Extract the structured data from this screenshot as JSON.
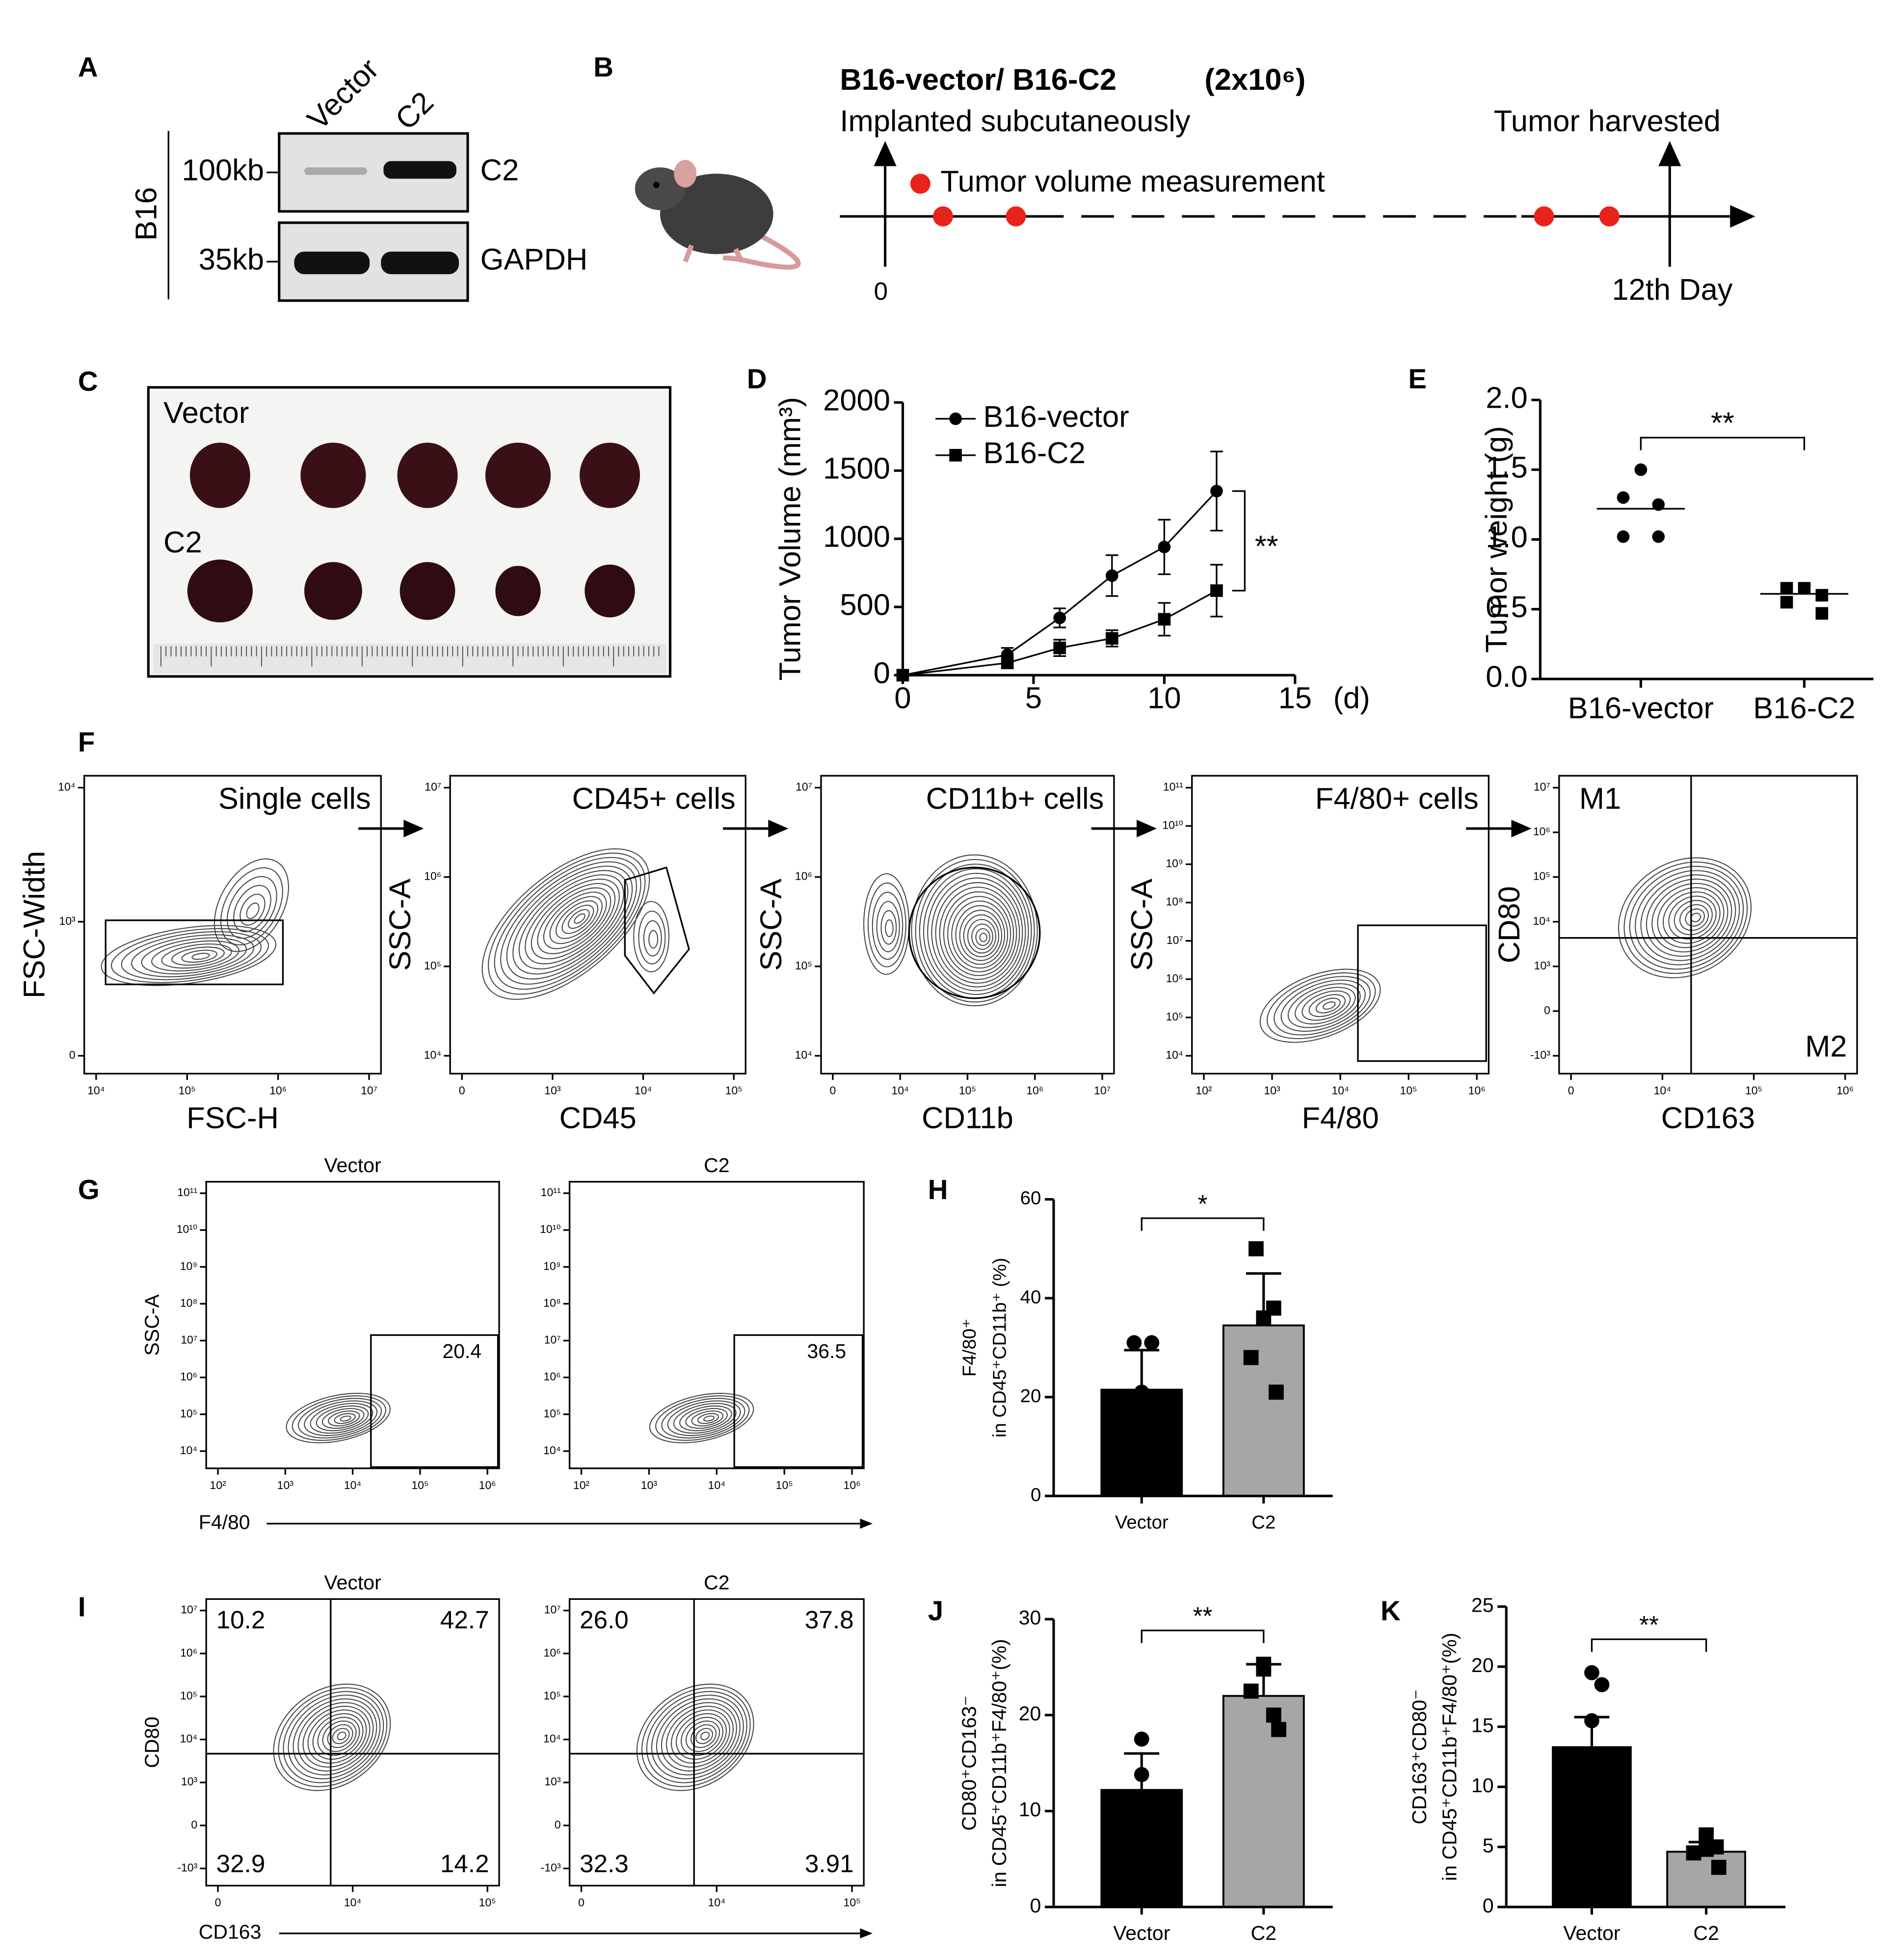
{
  "panel_A": {
    "label": "A",
    "cell_line": "B16",
    "lanes": [
      "Vector",
      "C2"
    ],
    "markers": [
      "100kb",
      "35kb"
    ],
    "proteins": [
      "C2",
      "GAPDH"
    ]
  },
  "panel_B": {
    "label": "B",
    "title": "B16-vector/ B16-C2",
    "dose": "(2x10⁶)",
    "start_text": "Implanted subcutaneously",
    "end_text": "Tumor harvested",
    "legend": "Tumor volume measurement",
    "start_day": "0",
    "end_day": "12th Day"
  },
  "panel_C": {
    "label": "C",
    "rows": [
      "Vector",
      "C2"
    ]
  },
  "chart_data": [
    {
      "type": "line",
      "panel": "D",
      "ylabel": "Tumor Volume (mm³)",
      "xunit": "(d)",
      "x": [
        0,
        4,
        6,
        8,
        10,
        12
      ],
      "xlim": [
        0,
        15
      ],
      "xticks": [
        0,
        5,
        10,
        15
      ],
      "ylim": [
        0,
        2000
      ],
      "yticks": [
        0,
        500,
        1000,
        1500,
        2000
      ],
      "series": [
        {
          "name": "B16-vector",
          "marker": "circle",
          "color": "#000000",
          "values": [
            0,
            150,
            420,
            730,
            940,
            1350
          ],
          "errors": [
            0,
            50,
            70,
            150,
            200,
            290
          ]
        },
        {
          "name": "B16-C2",
          "marker": "square",
          "color": "#000000",
          "values": [
            0,
            90,
            200,
            270,
            410,
            620
          ],
          "errors": [
            0,
            30,
            60,
            60,
            120,
            190
          ]
        }
      ],
      "annotation": "**"
    },
    {
      "type": "dot",
      "panel": "E",
      "ylabel": "Tumor weight (g)",
      "categories": [
        "B16-vector",
        "B16-C2"
      ],
      "ylim": [
        0,
        2
      ],
      "yticks": [
        {
          "value": 0,
          "label": "0.0"
        },
        {
          "value": 0.5,
          "label": "0.5"
        },
        {
          "value": 1,
          "label": "1.0"
        },
        {
          "value": 1.5,
          "label": "1.5"
        },
        {
          "value": 2,
          "label": "2.0"
        }
      ],
      "points": [
        [
          1.5,
          1.3,
          1.25,
          1.02,
          1.02
        ],
        [
          0.65,
          0.65,
          0.6,
          0.55,
          0.47
        ]
      ],
      "means": [
        1.22,
        0.61
      ],
      "markers": [
        "circle",
        "square"
      ],
      "color": "#000000",
      "annotation": "**"
    },
    {
      "type": "bar",
      "panel": "H",
      "ylabel": [
        "F4/80⁺",
        "in CD45⁺CD11b⁺ (%)"
      ],
      "categories": [
        "Vector",
        "C2"
      ],
      "values": [
        21.5,
        34.5
      ],
      "errors": [
        8,
        10.5
      ],
      "points": [
        [
          31,
          31,
          21,
          14,
          11
        ],
        [
          50,
          38,
          36,
          28,
          21
        ]
      ],
      "colors": [
        "#000000",
        "#a6a6a6"
      ],
      "markers": [
        "circle",
        "square"
      ],
      "ylim": [
        0,
        60
      ],
      "yticks": [
        0,
        20,
        40,
        60
      ],
      "annotation": "*"
    },
    {
      "type": "bar",
      "panel": "J",
      "ylabel": [
        "CD80⁺CD163⁻",
        "in CD45⁺CD11b⁺F4/80⁺(%)"
      ],
      "categories": [
        "Vector",
        "C2"
      ],
      "values": [
        12.2,
        22
      ],
      "errors": [
        3.8,
        3.3
      ],
      "points": [
        [
          17.5,
          13.8,
          10,
          9.5,
          10.2
        ],
        [
          25.3,
          24.8,
          22.5,
          20,
          18.5
        ]
      ],
      "colors": [
        "#000000",
        "#a6a6a6"
      ],
      "markers": [
        "circle",
        "square"
      ],
      "ylim": [
        0,
        30
      ],
      "yticks": [
        0,
        10,
        20,
        30
      ],
      "annotation": "**"
    },
    {
      "type": "bar",
      "panel": "K",
      "ylabel": [
        "CD163⁺CD80⁻",
        "in CD45⁺CD11b⁺F4/80⁺(%)"
      ],
      "categories": [
        "Vector",
        "C2"
      ],
      "values": [
        13.3,
        4.6
      ],
      "errors": [
        2.5,
        0.8
      ],
      "points": [
        [
          19.5,
          18.5,
          15.5,
          8,
          5
        ],
        [
          6,
          5,
          4.8,
          4.5,
          3.3
        ]
      ],
      "colors": [
        "#000000",
        "#a6a6a6"
      ],
      "markers": [
        "circle",
        "square"
      ],
      "ylim": [
        0,
        25
      ],
      "yticks": [
        0,
        5,
        10,
        15,
        20,
        25
      ],
      "annotation": "**"
    }
  ],
  "panel_F": {
    "label": "F",
    "plots": [
      {
        "title": "Single cells",
        "xlabel": "FSC-H",
        "ylabel": "FSC-Width",
        "xticks": [
          "10⁴",
          "10⁵",
          "10⁶",
          "10⁷"
        ],
        "yticks": [
          "0",
          "10³",
          "10⁴"
        ]
      },
      {
        "title": "CD45+ cells",
        "xlabel": "CD45",
        "ylabel": "SSC-A",
        "xticks": [
          "0",
          "10³",
          "10⁴",
          "10⁵"
        ],
        "yticks": [
          "10⁴",
          "10⁵",
          "10⁶",
          "10⁷"
        ]
      },
      {
        "title": "CD11b+ cells",
        "xlabel": "CD11b",
        "ylabel": "SSC-A",
        "xticks": [
          "0",
          "10⁴",
          "10⁵",
          "10⁶",
          "10⁷"
        ],
        "yticks": [
          "10⁴",
          "10⁵",
          "10⁶",
          "10⁷"
        ]
      },
      {
        "title": "F4/80+ cells",
        "xlabel": "F4/80",
        "ylabel": "SSC-A",
        "xticks": [
          "10²",
          "10³",
          "10⁴",
          "10⁵",
          "10⁶"
        ],
        "yticks": [
          "10⁴",
          "10⁵",
          "10⁶",
          "10⁷",
          "10⁸",
          "10⁹",
          "10¹⁰",
          "10¹¹"
        ]
      },
      {
        "title": "M1",
        "corner": "M2",
        "xlabel": "CD163",
        "ylabel": "CD80",
        "xticks": [
          "0",
          "10⁴",
          "10⁵",
          "10⁶"
        ],
        "yticks": [
          "-10³",
          "0",
          "10³",
          "10⁴",
          "10⁵",
          "10⁶",
          "10⁷"
        ]
      }
    ]
  },
  "panel_G": {
    "label": "G",
    "xlabel": "F4/80",
    "ylabel": "SSC-A",
    "xticks": [
      "10²",
      "10³",
      "10⁴",
      "10⁵",
      "10⁶"
    ],
    "yticks": [
      "10⁴",
      "10⁵",
      "10⁶",
      "10⁷",
      "10⁸",
      "10⁹",
      "10¹⁰",
      "10¹¹"
    ],
    "plots": [
      {
        "title": "Vector",
        "gate": "20.4"
      },
      {
        "title": "C2",
        "gate": "36.5"
      }
    ]
  },
  "panel_I": {
    "label": "I",
    "xlabel": "CD163",
    "ylabel": "CD80",
    "xticks": [
      "0",
      "10⁴",
      "10⁵"
    ],
    "yticks": [
      "-10³",
      "0",
      "10³",
      "10⁴",
      "10⁵",
      "10⁶",
      "10⁷"
    ],
    "plots": [
      {
        "title": "Vector",
        "quadrants": [
          "10.2",
          "42.7",
          "32.9",
          "14.2"
        ]
      },
      {
        "title": "C2",
        "quadrants": [
          "26.0",
          "37.8",
          "32.3",
          "3.91"
        ]
      }
    ]
  }
}
